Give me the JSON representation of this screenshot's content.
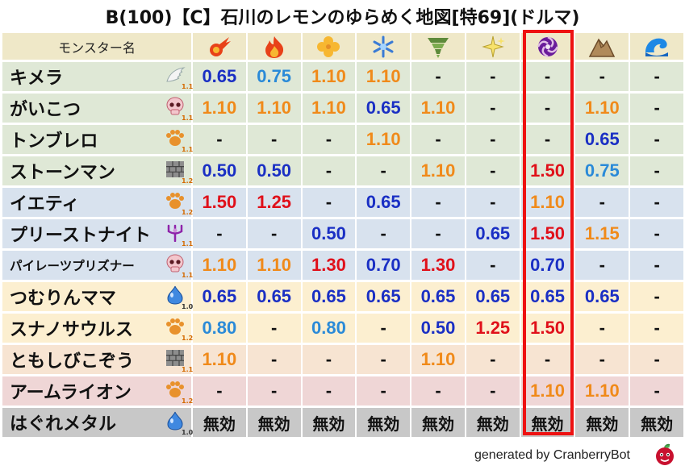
{
  "title": "B(100)【C】石川のレモンのゆらめく地図[特69](ドルマ)",
  "header": {
    "name_label": "モンスター名",
    "elements": [
      "fire-icon",
      "flame-icon",
      "clover-icon",
      "snowflake-icon",
      "tornado-icon",
      "sparkle-icon",
      "dorma-vortex-icon",
      "rock-icon",
      "wave-icon"
    ]
  },
  "highlight_column_index": 6,
  "colors": {
    "row_green": "#dfe8d6",
    "row_blue": "#d8e2ee",
    "row_yellow": "#fcefd0",
    "row_peach": "#f7e4d2",
    "row_pink": "#efd6d6",
    "row_gray": "#c8c8c8",
    "value_red": "#e0101a",
    "value_orange": "#f08a1a",
    "value_blue": "#1a2fc4",
    "value_lightblue": "#2a8ad8",
    "value_dash": "#111111",
    "value_mukou": "#111111",
    "highlight_border": "#e11111"
  },
  "rows": [
    {
      "name": "キメラ",
      "type_icon": "wing-icon",
      "type_num": "1.1",
      "bg": "row_green",
      "values": [
        [
          "0.65",
          "blue"
        ],
        [
          "0.75",
          "lightblue"
        ],
        [
          "1.10",
          "orange"
        ],
        [
          "1.10",
          "orange"
        ],
        [
          "-",
          "dash"
        ],
        [
          "-",
          "dash"
        ],
        [
          "-",
          "dash"
        ],
        [
          "-",
          "dash"
        ],
        [
          "-",
          "dash"
        ]
      ]
    },
    {
      "name": "がいこつ",
      "type_icon": "skull-icon",
      "type_num": "1.1",
      "bg": "row_green",
      "values": [
        [
          "1.10",
          "orange"
        ],
        [
          "1.10",
          "orange"
        ],
        [
          "1.10",
          "orange"
        ],
        [
          "0.65",
          "blue"
        ],
        [
          "1.10",
          "orange"
        ],
        [
          "-",
          "dash"
        ],
        [
          "-",
          "dash"
        ],
        [
          "1.10",
          "orange"
        ],
        [
          "-",
          "dash"
        ]
      ]
    },
    {
      "name": "トンブレロ",
      "type_icon": "paw-icon",
      "type_num": "1.1",
      "bg": "row_green",
      "values": [
        [
          "-",
          "dash"
        ],
        [
          "-",
          "dash"
        ],
        [
          "-",
          "dash"
        ],
        [
          "1.10",
          "orange"
        ],
        [
          "-",
          "dash"
        ],
        [
          "-",
          "dash"
        ],
        [
          "-",
          "dash"
        ],
        [
          "0.65",
          "blue"
        ],
        [
          "-",
          "dash"
        ]
      ]
    },
    {
      "name": "ストーンマン",
      "type_icon": "brick-icon",
      "type_num": "1.2",
      "bg": "row_green",
      "values": [
        [
          "0.50",
          "blue"
        ],
        [
          "0.50",
          "blue"
        ],
        [
          "-",
          "dash"
        ],
        [
          "-",
          "dash"
        ],
        [
          "1.10",
          "orange"
        ],
        [
          "-",
          "dash"
        ],
        [
          "1.50",
          "red"
        ],
        [
          "0.75",
          "lightblue"
        ],
        [
          "-",
          "dash"
        ]
      ]
    },
    {
      "name": "イエティ",
      "type_icon": "paw-icon",
      "type_num": "1.2",
      "bg": "row_blue",
      "values": [
        [
          "1.50",
          "red"
        ],
        [
          "1.25",
          "red"
        ],
        [
          "-",
          "dash"
        ],
        [
          "0.65",
          "blue"
        ],
        [
          "-",
          "dash"
        ],
        [
          "-",
          "dash"
        ],
        [
          "1.10",
          "orange"
        ],
        [
          "-",
          "dash"
        ],
        [
          "-",
          "dash"
        ]
      ]
    },
    {
      "name": "プリーストナイト",
      "type_icon": "trident-icon",
      "type_num": "1.1",
      "bg": "row_blue",
      "values": [
        [
          "-",
          "dash"
        ],
        [
          "-",
          "dash"
        ],
        [
          "0.50",
          "blue"
        ],
        [
          "-",
          "dash"
        ],
        [
          "-",
          "dash"
        ],
        [
          "0.65",
          "blue"
        ],
        [
          "1.50",
          "red"
        ],
        [
          "1.15",
          "orange"
        ],
        [
          "-",
          "dash"
        ]
      ]
    },
    {
      "name": "パイレーツプリズナー",
      "type_icon": "skull-icon",
      "type_num": "1.1",
      "bg": "row_blue",
      "small": true,
      "values": [
        [
          "1.10",
          "orange"
        ],
        [
          "1.10",
          "orange"
        ],
        [
          "1.30",
          "red"
        ],
        [
          "0.70",
          "blue"
        ],
        [
          "1.30",
          "red"
        ],
        [
          "-",
          "dash"
        ],
        [
          "0.70",
          "blue"
        ],
        [
          "-",
          "dash"
        ],
        [
          "-",
          "dash"
        ]
      ]
    },
    {
      "name": "つむりんママ",
      "type_icon": "slime-icon",
      "type_num": "1.0",
      "bg": "row_yellow",
      "values": [
        [
          "0.65",
          "blue"
        ],
        [
          "0.65",
          "blue"
        ],
        [
          "0.65",
          "blue"
        ],
        [
          "0.65",
          "blue"
        ],
        [
          "0.65",
          "blue"
        ],
        [
          "0.65",
          "blue"
        ],
        [
          "0.65",
          "blue"
        ],
        [
          "0.65",
          "blue"
        ],
        [
          "-",
          "dash"
        ]
      ]
    },
    {
      "name": "スナノサウルス",
      "type_icon": "paw-icon",
      "type_num": "1.2",
      "bg": "row_yellow",
      "values": [
        [
          "0.80",
          "lightblue"
        ],
        [
          "-",
          "dash"
        ],
        [
          "0.80",
          "lightblue"
        ],
        [
          "-",
          "dash"
        ],
        [
          "0.50",
          "blue"
        ],
        [
          "1.25",
          "red"
        ],
        [
          "1.50",
          "red"
        ],
        [
          "-",
          "dash"
        ],
        [
          "-",
          "dash"
        ]
      ]
    },
    {
      "name": "ともしびこぞう",
      "type_icon": "brick-icon",
      "type_num": "1.1",
      "bg": "row_peach",
      "values": [
        [
          "1.10",
          "orange"
        ],
        [
          "-",
          "dash"
        ],
        [
          "-",
          "dash"
        ],
        [
          "-",
          "dash"
        ],
        [
          "1.10",
          "orange"
        ],
        [
          "-",
          "dash"
        ],
        [
          "-",
          "dash"
        ],
        [
          "-",
          "dash"
        ],
        [
          "-",
          "dash"
        ]
      ]
    },
    {
      "name": "アームライオン",
      "type_icon": "paw-icon",
      "type_num": "1.2",
      "bg": "row_pink",
      "values": [
        [
          "-",
          "dash"
        ],
        [
          "-",
          "dash"
        ],
        [
          "-",
          "dash"
        ],
        [
          "-",
          "dash"
        ],
        [
          "-",
          "dash"
        ],
        [
          "-",
          "dash"
        ],
        [
          "1.10",
          "orange"
        ],
        [
          "1.10",
          "orange"
        ],
        [
          "-",
          "dash"
        ]
      ]
    },
    {
      "name": "はぐれメタル",
      "type_icon": "slime-icon",
      "type_num": "1.0",
      "bg": "row_gray",
      "values": [
        [
          "無効",
          "mukou"
        ],
        [
          "無効",
          "mukou"
        ],
        [
          "無効",
          "mukou"
        ],
        [
          "無効",
          "mukou"
        ],
        [
          "無効",
          "mukou"
        ],
        [
          "無効",
          "mukou"
        ],
        [
          "無効",
          "mukou"
        ],
        [
          "無効",
          "mukou"
        ],
        [
          "無効",
          "mukou"
        ]
      ]
    }
  ],
  "footer": "generated by CranberryBot"
}
